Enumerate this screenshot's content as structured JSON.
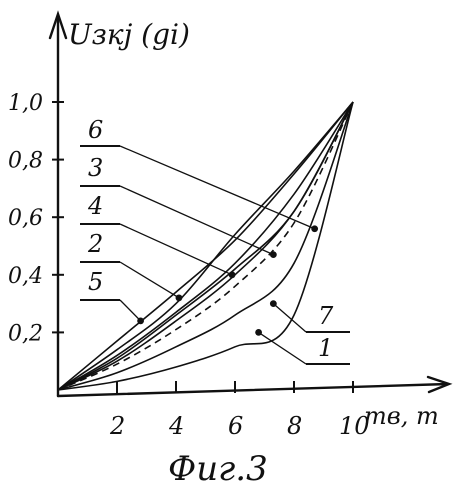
{
  "chart_data": {
    "type": "line",
    "title": "",
    "ylabel": "Uзкj (gi)",
    "xlabel": "mв, т",
    "caption": "Фиг.3",
    "x_ticks": [
      "2",
      "4",
      "6",
      "8",
      "10"
    ],
    "y_ticks": [
      "0,2",
      "0,4",
      "0,6",
      "0,8",
      "1,0"
    ],
    "xlim": [
      0,
      10.2
    ],
    "ylim": [
      0,
      1.08
    ],
    "grid": false,
    "series": [
      {
        "name": "6",
        "x": [
          0,
          2,
          4,
          6,
          8,
          10
        ],
        "y": [
          0,
          0.14,
          0.3,
          0.54,
          0.76,
          1.0
        ],
        "marker_x": 8.7,
        "marker_y": 0.56
      },
      {
        "name": "3",
        "x": [
          0,
          2,
          4,
          6,
          8,
          10
        ],
        "y": [
          0,
          0.12,
          0.27,
          0.44,
          0.68,
          1.0
        ],
        "marker_x": 7.3,
        "marker_y": 0.47
      },
      {
        "name": "4",
        "x": [
          0,
          2,
          4,
          6,
          8,
          10
        ],
        "y": [
          0,
          0.1,
          0.24,
          0.4,
          0.62,
          1.0
        ],
        "marker_x": 5.9,
        "marker_y": 0.4
      },
      {
        "name": "2",
        "x": [
          0,
          2,
          4,
          6,
          8,
          10
        ],
        "y": [
          0,
          0.11,
          0.26,
          0.42,
          0.62,
          1.0
        ],
        "marker_x": 4.1,
        "marker_y": 0.32
      },
      {
        "name": "5",
        "x": [
          0,
          2,
          4,
          6,
          8,
          10
        ],
        "y": [
          0,
          0.17,
          0.34,
          0.52,
          0.75,
          1.0
        ],
        "marker_x": 2.8,
        "marker_y": 0.24
      },
      {
        "name": "7",
        "x": [
          0,
          2,
          4,
          6,
          8,
          10
        ],
        "y": [
          0,
          0.06,
          0.15,
          0.26,
          0.44,
          1.0
        ],
        "marker_x": 7.3,
        "marker_y": 0.3
      },
      {
        "name": "1",
        "x": [
          0,
          2,
          4,
          6,
          8,
          10
        ],
        "y": [
          0,
          0.03,
          0.08,
          0.15,
          0.26,
          1.0
        ],
        "marker_x": 6.8,
        "marker_y": 0.2
      },
      {
        "name": "",
        "dashed": true,
        "x": [
          0,
          2,
          4,
          6,
          8,
          10
        ],
        "y": [
          0,
          0.09,
          0.21,
          0.36,
          0.58,
          1.0
        ]
      }
    ]
  }
}
